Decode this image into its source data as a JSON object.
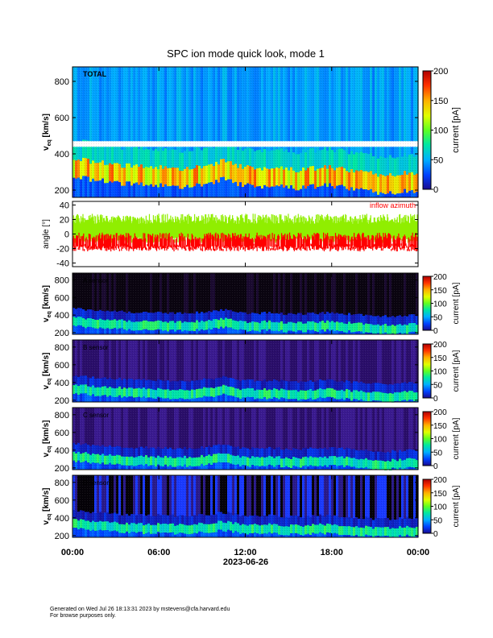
{
  "figure": {
    "title": "SPC ion mode quick look, mode 1",
    "footer_line1": "Generated on Wed Jul 26 18:13:31 2023 by mstevens@cfa.harvard.edu",
    "footer_line2": "For browse purposes only."
  },
  "chart_data": [
    {
      "type": "heatmap",
      "panel": "total",
      "panel_label": "TOTAL",
      "ylabel_main": "v",
      "ylabel_sub": "eq",
      "ylabel_unit": " [km/s]",
      "ylim": [
        160,
        880
      ],
      "yticks": [
        200,
        400,
        600,
        800
      ],
      "colorbar_label": "current [pA]",
      "colorbar_ticks": [
        0,
        50,
        100,
        150,
        200
      ],
      "colorbar_range": [
        0,
        200
      ],
      "peak_velocity_kms": [
        320,
        300,
        290,
        280,
        270,
        270,
        265,
        260,
        265,
        280,
        300,
        270,
        260,
        265,
        255,
        250,
        260,
        265,
        255,
        240,
        230,
        225,
        235,
        240
      ]
    },
    {
      "type": "line",
      "panel": "angle",
      "ylabel": "angle [°]",
      "ylim": [
        -45,
        45
      ],
      "yticks": [
        40,
        20,
        0,
        -20,
        -40
      ],
      "annotation": "inflow azimuth",
      "series": [
        {
          "color": "#90ee00",
          "band_low": -10,
          "band_high": 28
        },
        {
          "color": "#ff0000",
          "band_low": -22,
          "band_high": 2
        }
      ]
    },
    {
      "type": "heatmap",
      "panel": "A",
      "panel_label": "A sensor",
      "ylabel_main": "v",
      "ylabel_sub": "eq",
      "ylabel_unit": " [km/s]",
      "ylim": [
        180,
        880
      ],
      "yticks": [
        200,
        400,
        600,
        800
      ],
      "colorbar_label": "current [pA]",
      "colorbar_ticks": [
        0,
        50,
        100,
        150,
        200
      ]
    },
    {
      "type": "heatmap",
      "panel": "B",
      "panel_label": "B sensor",
      "ylabel_main": "v",
      "ylabel_sub": "eq",
      "ylabel_unit": " [km/s]",
      "ylim": [
        180,
        880
      ],
      "yticks": [
        200,
        400,
        600,
        800
      ],
      "colorbar_label": "current [pA]",
      "colorbar_ticks": [
        0,
        50,
        100,
        150,
        200
      ]
    },
    {
      "type": "heatmap",
      "panel": "C",
      "panel_label": "C sensor",
      "ylabel_main": "v",
      "ylabel_sub": "eq",
      "ylabel_unit": " [km/s]",
      "ylim": [
        180,
        880
      ],
      "yticks": [
        200,
        400,
        600,
        800
      ],
      "colorbar_label": "current [pA]",
      "colorbar_ticks": [
        0,
        50,
        100,
        150,
        200
      ]
    },
    {
      "type": "heatmap",
      "panel": "D",
      "panel_label": "D sensor",
      "ylabel_main": "v",
      "ylabel_sub": "eq",
      "ylabel_unit": " [km/s]",
      "ylim": [
        180,
        880
      ],
      "yticks": [
        200,
        400,
        600,
        800
      ],
      "colorbar_label": "current [pA]",
      "colorbar_ticks": [
        0,
        50,
        100,
        150,
        200
      ]
    }
  ],
  "x_axis": {
    "tick_labels": [
      "00:00",
      "06:00",
      "12:00",
      "18:00",
      "00:00"
    ],
    "date_label": "2023-06-26"
  },
  "colors": {
    "colormap": [
      "#000000",
      "#3a0a6e",
      "#1a1ab0",
      "#0060ff",
      "#00c8ff",
      "#00e070",
      "#80ff00",
      "#ffff00",
      "#ffa000",
      "#ff2000",
      "#b00000"
    ]
  }
}
